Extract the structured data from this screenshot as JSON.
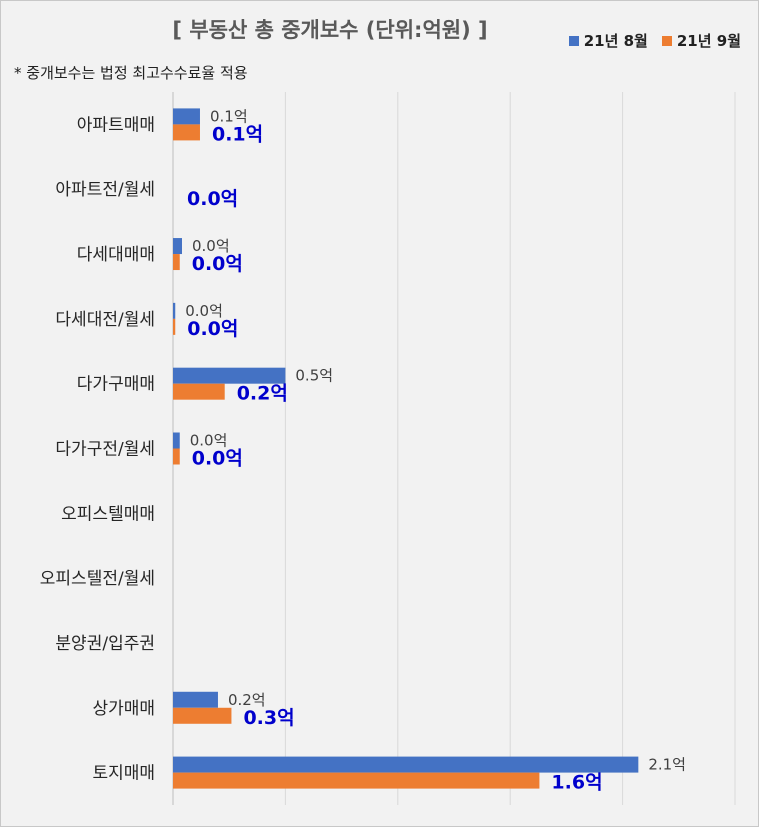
{
  "title": "[ 부동산 총 중개보수 (단위:억원) ]",
  "note": "* 중개보수는 법정 최고수수료율 적용",
  "colors": {
    "aug": "#4472C4",
    "sep": "#ED7D31",
    "sep_label": "#0000CC",
    "aug_label": "#404040"
  },
  "chart_data": {
    "type": "bar",
    "orientation": "horizontal",
    "title": "[ 부동산 총 중개보수 (단위:억원) ]",
    "categories": [
      "아파트매매",
      "아파트전/월세",
      "다세대매매",
      "다세대전/월세",
      "다가구매매",
      "다가구전/월세",
      "오피스텔매매",
      "오피스텔전/월세",
      "분양권/입주권",
      "상가매매",
      "토지매매"
    ],
    "series": [
      {
        "name": "21년 8월",
        "values": [
          0.12,
          0,
          0.04,
          0.01,
          0.5,
          0.03,
          0,
          0,
          0,
          0.2,
          2.07
        ],
        "labels": [
          "0.1억",
          "",
          "0.0억",
          "0.0억",
          "0.5억",
          "0.0억",
          "",
          "",
          "",
          "0.2억",
          "2.1억"
        ]
      },
      {
        "name": "21년 9월",
        "values": [
          0.12,
          0,
          0.03,
          0.01,
          0.23,
          0.03,
          0,
          0,
          0,
          0.26,
          1.63
        ],
        "labels": [
          "0.1억",
          "0.0억",
          "0.0억",
          "0.0억",
          "0.2억",
          "0.0억",
          "",
          "",
          "",
          "0.3억",
          "1.6억"
        ]
      }
    ],
    "xlim": [
      0,
      2.5
    ],
    "grid": true,
    "legend": "top-right"
  }
}
